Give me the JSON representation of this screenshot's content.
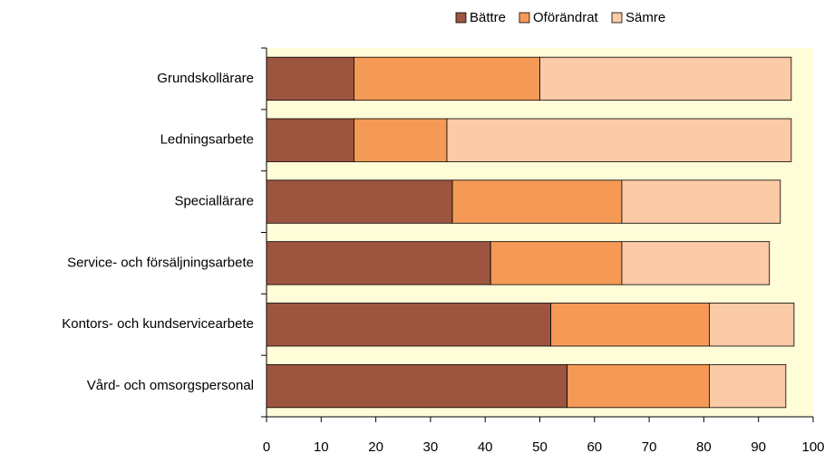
{
  "chart_data": {
    "type": "stacked_barh",
    "categories": [
      "Grundskollärare",
      "Ledningsarbete",
      "Speciallärare",
      "Service- och försäljningsarbete",
      "Kontors- och kundservicearbete",
      "Vård- och omsorgspersonal"
    ],
    "series": [
      {
        "name": "Bättre",
        "color": "#9e5540",
        "values": [
          16,
          16,
          34,
          41,
          52,
          55
        ]
      },
      {
        "name": "Oförändrat",
        "color": "#f59a56",
        "values": [
          34,
          17,
          31,
          24,
          29,
          26
        ]
      },
      {
        "name": "Sämre",
        "color": "#fbcaa6",
        "values": [
          46,
          63,
          29,
          27,
          15.5,
          14
        ]
      }
    ],
    "xlim": [
      0,
      100
    ],
    "xticks": [
      0,
      10,
      20,
      30,
      40,
      50,
      60,
      70,
      80,
      90,
      100
    ],
    "legend": "top",
    "background": "#fffcd8"
  }
}
